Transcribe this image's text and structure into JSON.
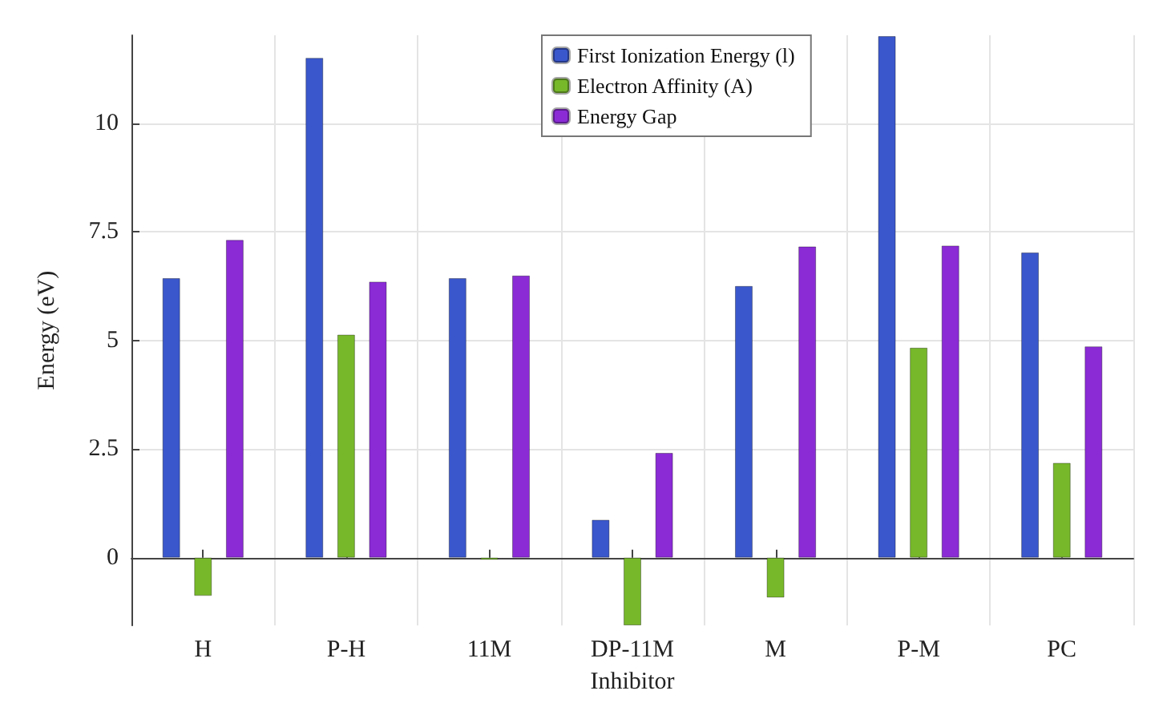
{
  "chart_data": {
    "type": "bar",
    "xlabel": "Inhibitor",
    "ylabel": "Energy (eV)",
    "categories": [
      "H",
      "P-H",
      "11M",
      "DP-11M",
      "M",
      "P-M",
      "PC"
    ],
    "series": [
      {
        "name": "First Ionization Energy (l)",
        "color": "#3a57cc",
        "values": [
          6.43,
          11.5,
          6.43,
          0.87,
          6.25,
          12.0,
          7.02
        ]
      },
      {
        "name": "Electron Affinity (A)",
        "color": "#77b82a",
        "values": [
          -0.88,
          5.13,
          -0.05,
          -1.56,
          -0.92,
          4.83,
          2.18
        ]
      },
      {
        "name": "Energy Gap",
        "color": "#8a2bd6",
        "values": [
          7.31,
          6.35,
          6.49,
          2.41,
          7.16,
          7.18,
          4.86
        ]
      }
    ],
    "ylim": [
      -1.56,
      12.02
    ],
    "yticks": [
      0,
      2.5,
      5,
      7.5,
      10
    ],
    "grid": true,
    "legend": "top"
  }
}
